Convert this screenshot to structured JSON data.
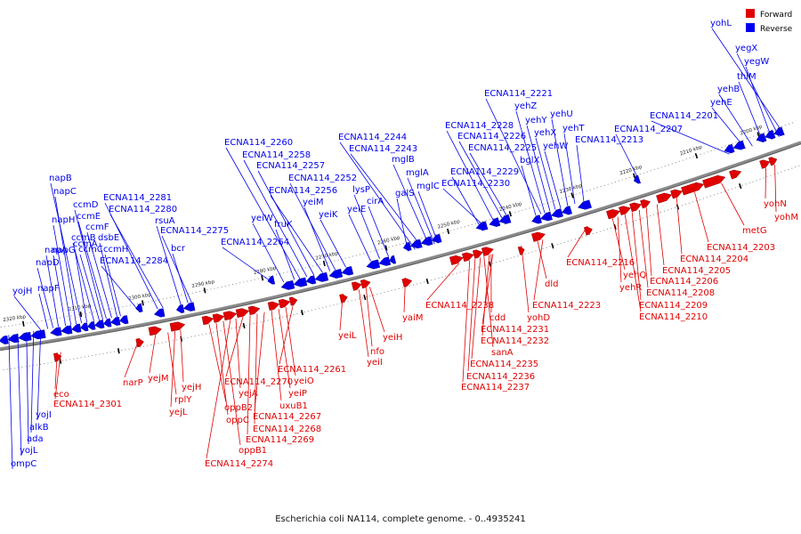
{
  "caption": "Escherichia coli NA114, complete genome. - 0..4935241",
  "legend": {
    "forward": {
      "label": "Forward",
      "color": "#e00000"
    },
    "reverse": {
      "label": "Reverse",
      "color": "#0000ee"
    }
  },
  "colors": {
    "backbone": "#8a8a8a",
    "forward": "#e00000",
    "reverse": "#0000ee"
  },
  "ticks": [
    "2320 kbp",
    "2310 kbp",
    "2300 kbp",
    "2290 kbp",
    "2280 kbp",
    "2270 kbp",
    "2260 kbp",
    "2250 kbp",
    "2240 kbp",
    "2230 kbp",
    "2220 kbp",
    "2210 kbp",
    "2200 kbp"
  ],
  "reverse_genes": [
    "ompC",
    "yojL",
    "ada",
    "alkB",
    "yojI",
    "yojH",
    "napF",
    "napD",
    "napA",
    "napG",
    "napH",
    "napC",
    "napB",
    "ccmA",
    "ccmB",
    "ccmC",
    "ccmD",
    "ccmE",
    "ccmF",
    "dsbE",
    "ccmH",
    "ECNA114_2284",
    "ECNA114_2281",
    "ECNA114_2280",
    "rsuA",
    "bcr",
    "ECNA114_2275",
    "ECNA114_2264",
    "yeiW",
    "fruK",
    "ECNA114_2260",
    "ECNA114_2258",
    "ECNA114_2257",
    "ECNA114_2256",
    "yeiM",
    "ECNA114_2252",
    "yeiK",
    "yeiE",
    "lysP",
    "cirA",
    "galS",
    "ECNA114_2244",
    "ECNA114_2243",
    "mglB",
    "mglA",
    "mglC",
    "ECNA114_2229",
    "ECNA114_2230",
    "ECNA114_2228",
    "ECNA114_2226",
    "ECNA114_2225",
    "bglX",
    "ECNA114_2221",
    "yehZ",
    "yehY",
    "yehX",
    "yehW",
    "yehU",
    "yehT",
    "ECNA114_2213",
    "ECNA114_2207",
    "ECNA114_2201",
    "yehE",
    "yehB",
    "thiM",
    "yegW",
    "yegX",
    "yohL"
  ],
  "forward_genes": [
    "eco",
    "ECNA114_2301",
    "narP",
    "yejM",
    "rplY",
    "yejL",
    "yejH",
    "oppB2",
    "oppC",
    "oppB1",
    "ECNA114_2274",
    "yejA",
    "ECNA114_2270",
    "ECNA114_2269",
    "ECNA114_2268",
    "ECNA114_2267",
    "uxuB1",
    "yeiP",
    "yeiO",
    "ECNA114_2261",
    "yeiL",
    "yeiI",
    "nfo",
    "yeiH",
    "yaiM",
    "ECNA114_2238",
    "ECNA114_2237",
    "ECNA114_2236",
    "ECNA114_2235",
    "sanA",
    "ECNA114_2232",
    "ECNA114_2231",
    "cdd",
    "yohD",
    "dld",
    "ECNA114_2223",
    "ECNA114_2216",
    "yehQ",
    "yehR",
    "ECNA114_2210",
    "ECNA114_2209",
    "ECNA114_2208",
    "ECNA114_2206",
    "ECNA114_2205",
    "ECNA114_2204",
    "ECNA114_2203",
    "metG",
    "yohN",
    "yohM"
  ]
}
